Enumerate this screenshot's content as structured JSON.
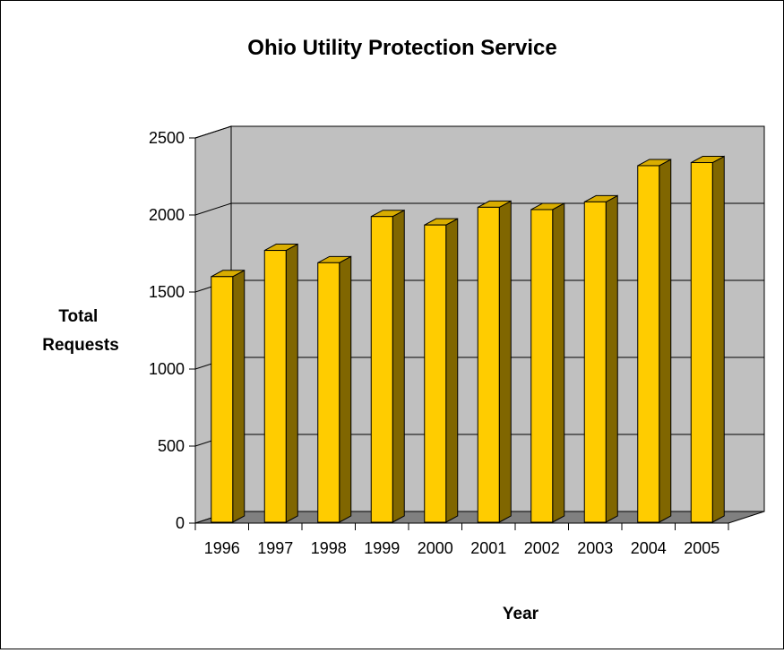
{
  "chart_data": {
    "type": "bar",
    "title": "Ohio Utility Protection Service",
    "xlabel": "Year",
    "ylabel_lines": [
      "Total",
      "Requests"
    ],
    "categories": [
      "1996",
      "1997",
      "1998",
      "1999",
      "2000",
      "2001",
      "2002",
      "2003",
      "2004",
      "2005"
    ],
    "series": [
      {
        "values": [
          1600,
          1770,
          1690,
          1990,
          1935,
          2050,
          2035,
          2085,
          2320,
          2340
        ]
      }
    ],
    "ylim": [
      0,
      2500
    ],
    "yticks": [
      0,
      500,
      1000,
      1500,
      2000,
      2500
    ],
    "grid": true,
    "legend": "none",
    "style": "3d-column",
    "colors": {
      "bar_front": "#FFCC00",
      "bar_top": "#D9AD00",
      "bar_side": "#806600",
      "wall": "#C0C0C0",
      "floor": "#808080"
    }
  }
}
